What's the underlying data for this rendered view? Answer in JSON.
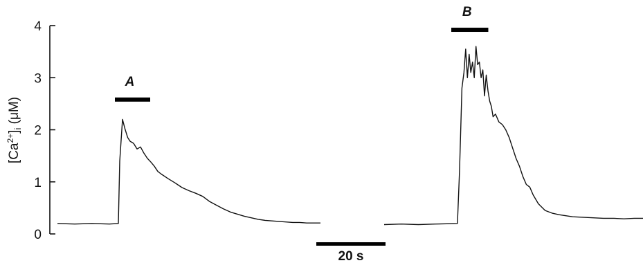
{
  "chart_data": {
    "type": "line",
    "title": "",
    "ylabel": {
      "main": "[Ca",
      "sup": "2+",
      "close": "]",
      "sub": "i",
      "unit": " (μM)"
    },
    "ylim": [
      0,
      4
    ],
    "yticks": [
      0,
      1,
      2,
      3,
      4
    ],
    "grid": false,
    "legend": "none",
    "time_scale_bar": {
      "label": "20 s",
      "seconds": 20
    },
    "stimulus_bars": [
      {
        "label": "A",
        "trace": 0,
        "start_s": 16.6,
        "end_s": 26.8,
        "level": 2.58
      },
      {
        "label": "B",
        "trace": 1,
        "start_s": 19.6,
        "end_s": 30.4,
        "level": 3.92
      }
    ],
    "series": [
      {
        "x": [
          0,
          5,
          10,
          15,
          17.6,
          18.0,
          18.8,
          19.5,
          20.3,
          21.0,
          22.0,
          23.0,
          24.0,
          25.0,
          26.0,
          27.0,
          28.0,
          29.0,
          30.0,
          32.0,
          34.0,
          36.0,
          38.0,
          40.0,
          42.0,
          44.0,
          46.0,
          48.0,
          50.0,
          52.0,
          54.0,
          56.0,
          58.0,
          60.0,
          62.0,
          64.0,
          66.0,
          68.0,
          70.0,
          72.0,
          74.0,
          76.0
        ],
        "y": [
          0.2,
          0.19,
          0.2,
          0.19,
          0.2,
          1.4,
          2.2,
          2.02,
          1.85,
          1.78,
          1.74,
          1.63,
          1.67,
          1.55,
          1.45,
          1.38,
          1.3,
          1.2,
          1.15,
          1.06,
          0.98,
          0.89,
          0.83,
          0.78,
          0.72,
          0.62,
          0.55,
          0.48,
          0.42,
          0.38,
          0.34,
          0.31,
          0.28,
          0.26,
          0.25,
          0.24,
          0.23,
          0.22,
          0.22,
          0.21,
          0.21,
          0.21
        ]
      },
      {
        "x": [
          0,
          5,
          10,
          15,
          21.4,
          22.0,
          22.7,
          23.3,
          23.8,
          24.3,
          24.8,
          25.3,
          25.8,
          26.3,
          26.8,
          27.3,
          27.8,
          28.3,
          28.8,
          29.3,
          29.8,
          30.3,
          30.8,
          31.3,
          31.8,
          32.5,
          33.5,
          34.5,
          35.5,
          36.5,
          37.5,
          38.5,
          39.5,
          40.5,
          41.5,
          42.5,
          43.5,
          45,
          47,
          49,
          51,
          53,
          55,
          58,
          61,
          64,
          67,
          70,
          73,
          76
        ],
        "y": [
          0.18,
          0.19,
          0.18,
          0.19,
          0.2,
          1.2,
          2.8,
          3.1,
          3.55,
          3.0,
          3.45,
          3.1,
          3.3,
          3.0,
          3.6,
          3.25,
          3.3,
          3.0,
          3.15,
          2.65,
          3.05,
          2.75,
          2.55,
          2.45,
          2.25,
          2.3,
          2.15,
          2.1,
          2.0,
          1.85,
          1.65,
          1.45,
          1.3,
          1.1,
          0.95,
          0.9,
          0.75,
          0.58,
          0.45,
          0.4,
          0.37,
          0.35,
          0.33,
          0.32,
          0.31,
          0.3,
          0.3,
          0.29,
          0.3,
          0.3
        ]
      }
    ]
  }
}
